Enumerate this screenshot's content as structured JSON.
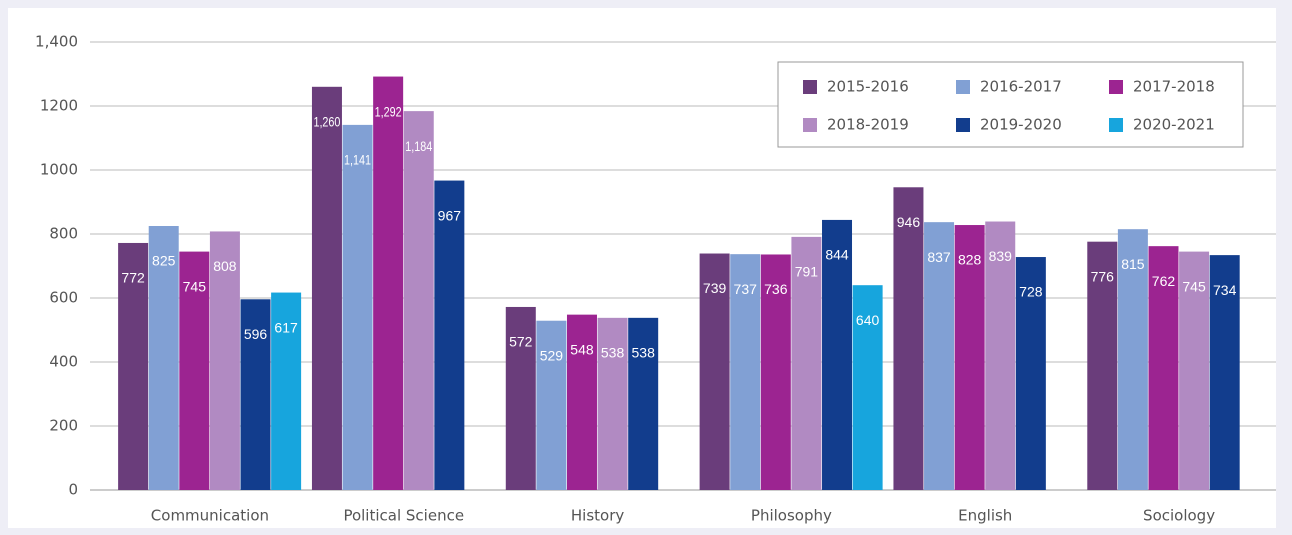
{
  "chart_data": {
    "type": "bar",
    "categories": [
      "Communication",
      "Political Science",
      "History",
      "Philosophy",
      "English",
      "Sociology"
    ],
    "series": [
      {
        "name": "2015-2016",
        "color": "#6a3d7b",
        "values": [
          772,
          1260,
          572,
          739,
          946,
          776
        ],
        "value_labels": [
          "772",
          "1,260",
          "572",
          "739",
          "946",
          "776"
        ]
      },
      {
        "name": "2016-2017",
        "color": "#81a0d4",
        "values": [
          825,
          1141,
          529,
          737,
          837,
          815
        ],
        "value_labels": [
          "825",
          "1,141",
          "529",
          "737",
          "837",
          "815"
        ]
      },
      {
        "name": "2017-2018",
        "color": "#9c2491",
        "values": [
          745,
          1292,
          548,
          736,
          828,
          762
        ],
        "value_labels": [
          "745",
          "1,292",
          "548",
          "736",
          "828",
          "762"
        ]
      },
      {
        "name": "2018-2019",
        "color": "#b18ac2",
        "values": [
          808,
          1184,
          538,
          791,
          839,
          745
        ],
        "value_labels": [
          "808",
          "1,184",
          "538",
          "791",
          "839",
          "745"
        ]
      },
      {
        "name": "2019-2020",
        "color": "#123d8d",
        "values": [
          596,
          967,
          538,
          844,
          728,
          734
        ],
        "value_labels": [
          "596",
          "967",
          "538",
          "844",
          "728",
          "734"
        ]
      },
      {
        "name": "2020-2021",
        "color": "#17a5dd",
        "values": [
          617,
          null,
          null,
          640,
          null,
          null
        ],
        "value_labels": [
          "617",
          null,
          null,
          "640",
          null,
          null
        ]
      }
    ],
    "ylim": [
      0,
      1400
    ],
    "yticks": [
      0,
      200,
      400,
      600,
      800,
      1000,
      1200,
      {
        "value": 1400,
        "label": "1,400"
      }
    ],
    "grid": true,
    "legend": "upper right"
  }
}
